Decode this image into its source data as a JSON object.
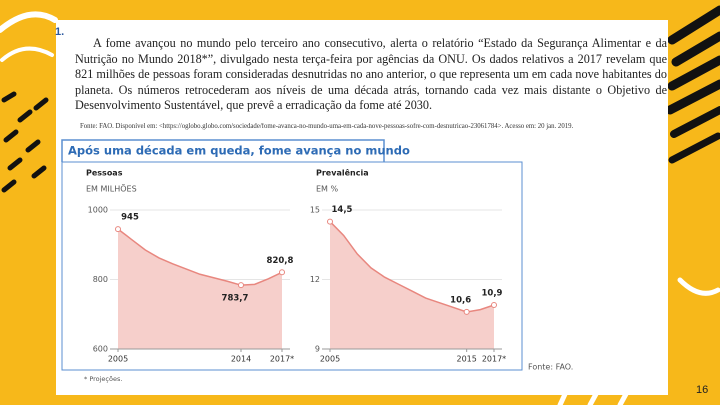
{
  "question_number": "1.",
  "paragraph": "A fome avançou no mundo pelo terceiro ano consecutivo, alerta o relatório “Estado da Segurança Alimentar e da Nutrição no Mundo 2018*”, divulgado nesta terça-feira por agências da ONU. Os dados relativos a 2017 revelam que 821 milhões de pessoas foram consideradas desnutridas no ano anterior, o que representa um em cada nove habitantes do planeta. Os números retrocederam aos níveis de uma década atrás, tornando cada vez mais distante o Objetivo de Desenvolvimento Sustentável, que prevê a erradicação da fome até 2030.",
  "source": "Fonte: FAO. Disponível em: <https://oglobo.globo.com/sociedade/fome-avanca-no-mundo-uma-em-cada-nove-pessoas-sofre-com-desnutricao-23061784>. Acesso em: 20 jan. 2019.",
  "figure_title": "Após uma década em queda, fome avança no mundo",
  "figure_source": "Fonte: FAO.",
  "footnote": "* Projeções.",
  "page_number": "16",
  "chart_data": [
    {
      "type": "area",
      "title": "Pessoas",
      "y_label": "EM MILHÕES",
      "x": [
        2005,
        2006,
        2007,
        2008,
        2009,
        2010,
        2011,
        2012,
        2013,
        2014,
        2015,
        2016,
        2017
      ],
      "values": [
        945,
        915,
        885,
        862,
        845,
        830,
        815,
        805,
        795,
        783.7,
        786,
        802,
        820.8
      ],
      "value_labels": [
        "945",
        null,
        null,
        null,
        null,
        null,
        null,
        null,
        null,
        "783,7",
        null,
        null,
        "820,8"
      ],
      "color": "#f6cfcb",
      "line_color": "#e8877f",
      "xlim": [
        2005,
        2017
      ],
      "ylim": [
        600,
        1000
      ],
      "xticks": [
        2005,
        2014,
        {
          "value": 2017,
          "label": "2017*"
        }
      ],
      "yticks": [
        600,
        800,
        1000
      ]
    },
    {
      "type": "area",
      "title": "Prevalência",
      "y_label": "EM %",
      "x": [
        2005,
        2006,
        2007,
        2008,
        2009,
        2010,
        2011,
        2012,
        2013,
        2014,
        2015,
        2016,
        2017
      ],
      "values": [
        14.5,
        13.9,
        13.1,
        12.5,
        12.1,
        11.8,
        11.5,
        11.2,
        11,
        10.8,
        10.6,
        10.7,
        10.9
      ],
      "value_labels": [
        "14,5",
        null,
        null,
        null,
        null,
        null,
        null,
        null,
        null,
        null,
        "10,6",
        null,
        "10,9"
      ],
      "color": "#f6cfcb",
      "line_color": "#e8877f",
      "xlim": [
        2005,
        2017
      ],
      "ylim": [
        9,
        15
      ],
      "xticks": [
        2005,
        2015,
        {
          "value": 2017,
          "label": "2017*"
        }
      ],
      "yticks": [
        9,
        12,
        15
      ]
    }
  ]
}
